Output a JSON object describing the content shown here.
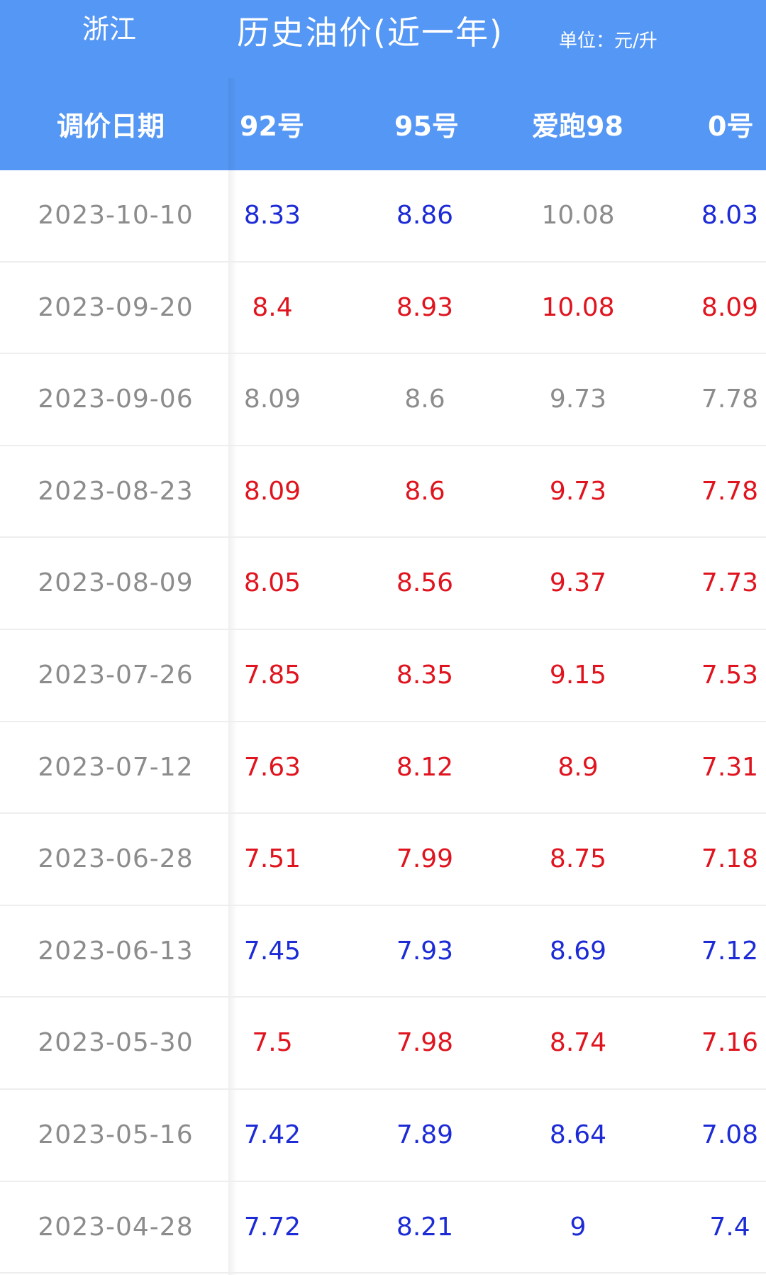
{
  "header": {
    "region": "浙江",
    "title": "历史油价(近一年)",
    "unit": "单位：元/升",
    "columns": {
      "date": "调价日期",
      "g92": "92号",
      "g95": "95号",
      "g98": "爱跑98",
      "g0": "0号"
    }
  },
  "rows": [
    {
      "date": "2023-10-10",
      "g92": "8.33",
      "g95": "8.86",
      "g98": "10.08",
      "g0": "8.03",
      "c92": "blue",
      "c95": "blue",
      "c98": "gray",
      "c0": "blue"
    },
    {
      "date": "2023-09-20",
      "g92": "8.4",
      "g95": "8.93",
      "g98": "10.08",
      "g0": "8.09",
      "c92": "red",
      "c95": "red",
      "c98": "red",
      "c0": "red"
    },
    {
      "date": "2023-09-06",
      "g92": "8.09",
      "g95": "8.6",
      "g98": "9.73",
      "g0": "7.78",
      "c92": "gray",
      "c95": "gray",
      "c98": "gray",
      "c0": "gray"
    },
    {
      "date": "2023-08-23",
      "g92": "8.09",
      "g95": "8.6",
      "g98": "9.73",
      "g0": "7.78",
      "c92": "red",
      "c95": "red",
      "c98": "red",
      "c0": "red"
    },
    {
      "date": "2023-08-09",
      "g92": "8.05",
      "g95": "8.56",
      "g98": "9.37",
      "g0": "7.73",
      "c92": "red",
      "c95": "red",
      "c98": "red",
      "c0": "red"
    },
    {
      "date": "2023-07-26",
      "g92": "7.85",
      "g95": "8.35",
      "g98": "9.15",
      "g0": "7.53",
      "c92": "red",
      "c95": "red",
      "c98": "red",
      "c0": "red"
    },
    {
      "date": "2023-07-12",
      "g92": "7.63",
      "g95": "8.12",
      "g98": "8.9",
      "g0": "7.31",
      "c92": "red",
      "c95": "red",
      "c98": "red",
      "c0": "red"
    },
    {
      "date": "2023-06-28",
      "g92": "7.51",
      "g95": "7.99",
      "g98": "8.75",
      "g0": "7.18",
      "c92": "red",
      "c95": "red",
      "c98": "red",
      "c0": "red"
    },
    {
      "date": "2023-06-13",
      "g92": "7.45",
      "g95": "7.93",
      "g98": "8.69",
      "g0": "7.12",
      "c92": "blue",
      "c95": "blue",
      "c98": "blue",
      "c0": "blue"
    },
    {
      "date": "2023-05-30",
      "g92": "7.5",
      "g95": "7.98",
      "g98": "8.74",
      "g0": "7.16",
      "c92": "red",
      "c95": "red",
      "c98": "red",
      "c0": "red"
    },
    {
      "date": "2023-05-16",
      "g92": "7.42",
      "g95": "7.89",
      "g98": "8.64",
      "g0": "7.08",
      "c92": "blue",
      "c95": "blue",
      "c98": "blue",
      "c0": "blue"
    },
    {
      "date": "2023-04-28",
      "g92": "7.72",
      "g95": "8.21",
      "g98": "9",
      "g0": "7.4",
      "c92": "blue",
      "c95": "blue",
      "c98": "blue",
      "c0": "blue"
    }
  ],
  "colors": {
    "header_bg": "#5597f5",
    "price_up": "#e0141e",
    "price_down": "#1c2bd6",
    "unchanged": "#8c8c8c"
  }
}
